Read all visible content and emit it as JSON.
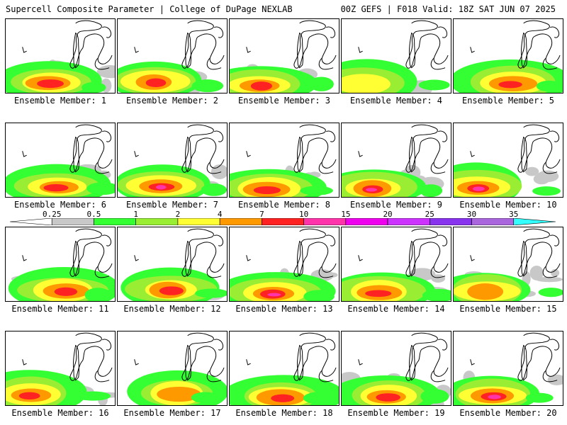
{
  "header": {
    "left_title": "Supercell Composite Parameter | College of DuPage NEXLAB",
    "right_title": "00Z GEFS | F018 Valid: 18Z SAT JUN 07 2025"
  },
  "colorbar": {
    "levels": [
      "0.25",
      "0.5",
      "1",
      "2",
      "4",
      "7",
      "10",
      "15",
      "20",
      "25",
      "30",
      "35"
    ],
    "colors": [
      "#c8c8c8",
      "#33ff33",
      "#99ee33",
      "#ffff33",
      "#ff9900",
      "#ff2222",
      "#ff33aa",
      "#ee00ee",
      "#cc33ff",
      "#8833ee",
      "#aa66dd",
      "#33ffff"
    ]
  },
  "panels": [
    {
      "label": "Ensemble Member: 1",
      "max_category": 5
    },
    {
      "label": "Ensemble Member: 2",
      "max_category": 5
    },
    {
      "label": "Ensemble Member: 3",
      "max_category": 5
    },
    {
      "label": "Ensemble Member: 4",
      "max_category": 3
    },
    {
      "label": "Ensemble Member: 5",
      "max_category": 5
    },
    {
      "label": "Ensemble Member: 6",
      "max_category": 5
    },
    {
      "label": "Ensemble Member: 7",
      "max_category": 6
    },
    {
      "label": "Ensemble Member: 8",
      "max_category": 5
    },
    {
      "label": "Ensemble Member: 9",
      "max_category": 6
    },
    {
      "label": "Ensemble Member: 10",
      "max_category": 6
    },
    {
      "label": "Ensemble Member: 11",
      "max_category": 5
    },
    {
      "label": "Ensemble Member: 12",
      "max_category": 5
    },
    {
      "label": "Ensemble Member: 13",
      "max_category": 6
    },
    {
      "label": "Ensemble Member: 14",
      "max_category": 5
    },
    {
      "label": "Ensemble Member: 15",
      "max_category": 4
    },
    {
      "label": "Ensemble Member: 16",
      "max_category": 5
    },
    {
      "label": "Ensemble Member: 17",
      "max_category": 4
    },
    {
      "label": "Ensemble Member: 18",
      "max_category": 5
    },
    {
      "label": "Ensemble Member: 19",
      "max_category": 5
    },
    {
      "label": "Ensemble Member: 20",
      "max_category": 6
    }
  ]
}
